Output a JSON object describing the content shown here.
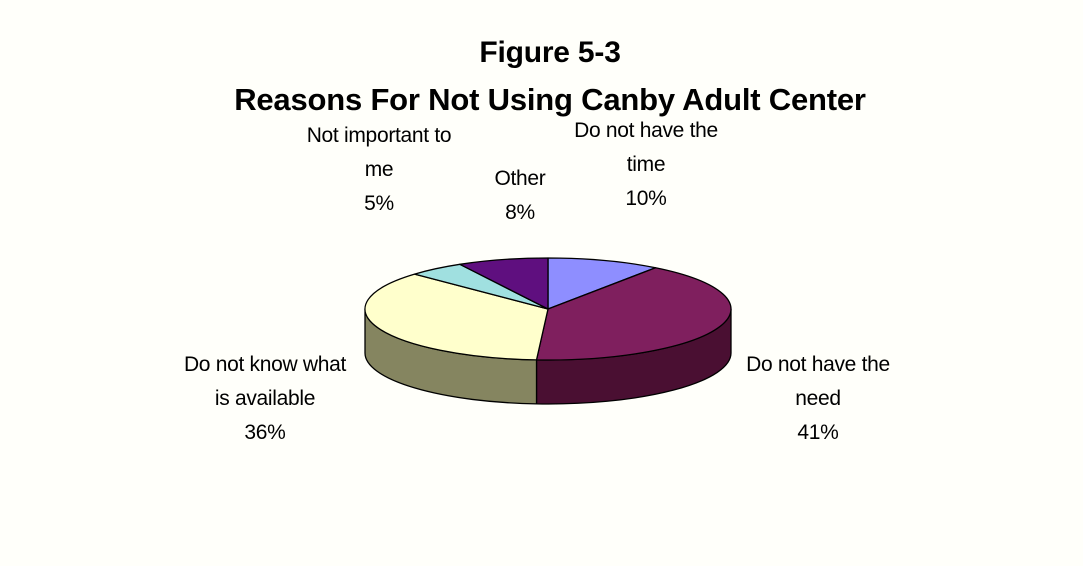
{
  "chart_data": {
    "type": "pie",
    "title_lines": [
      "Figure 5-3",
      "Reasons For Not Using Canby Adult Center"
    ],
    "slices": [
      {
        "label_lines": [
          "Do not have the",
          "time"
        ],
        "value": 10,
        "value_label": "10%",
        "top_color": "#8e8eff",
        "side_color": "#4a4a8a"
      },
      {
        "label_lines": [
          "Do not have the",
          "need"
        ],
        "value": 41,
        "value_label": "41%",
        "top_color": "#7f1f5e",
        "side_color": "#4a0f32"
      },
      {
        "label_lines": [
          "Do not know what",
          "is available"
        ],
        "value": 36,
        "value_label": "36%",
        "top_color": "#ffffcc",
        "side_color": "#858560"
      },
      {
        "label_lines": [
          "Not important to",
          "me"
        ],
        "value": 5,
        "value_label": "5%",
        "top_color": "#a0e0e0",
        "side_color": "#5a8a8a"
      },
      {
        "label_lines": [
          "Other"
        ],
        "value": 8,
        "value_label": "8%",
        "top_color": "#5f0f7f",
        "side_color": "#380848"
      }
    ],
    "legend": "none",
    "three_d": true
  }
}
